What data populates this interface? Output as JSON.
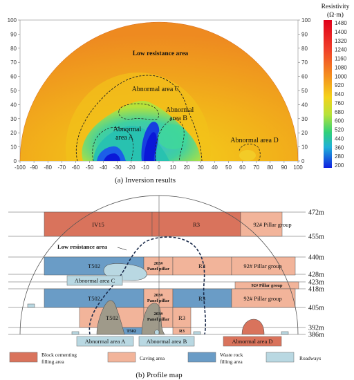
{
  "inversion": {
    "caption": "(a) Inversion results",
    "x_ticks": [
      "-100",
      "-90",
      "-80",
      "-70",
      "-60",
      "-50",
      "-40",
      "-30",
      "-20",
      "-10",
      "0",
      "10",
      "20",
      "30",
      "40",
      "50",
      "60",
      "70",
      "80",
      "90",
      "100"
    ],
    "y_ticks": [
      "0",
      "10",
      "20",
      "30",
      "40",
      "50",
      "60",
      "70",
      "80",
      "90",
      "100"
    ],
    "colorbar": {
      "title": "Resistivity",
      "unit": "(Ω·m)",
      "ticks": [
        "1480",
        "1400",
        "1320",
        "1240",
        "1160",
        "1080",
        "1000",
        "920",
        "840",
        "760",
        "680",
        "600",
        "520",
        "440",
        "360",
        "280",
        "200"
      ]
    },
    "labels": {
      "low_resistance": "Low resistance area",
      "area_c": "Abnormal area C",
      "area_b_line1": "Abnormal",
      "area_b_line2": "area B",
      "area_a_line1": "Abnormal",
      "area_a_line2": "area A",
      "area_d": "Abnormal area D"
    }
  },
  "profile": {
    "caption": "(b) Profile map",
    "levels": [
      "472m",
      "455m",
      "440m",
      "428m",
      "423m",
      "418m",
      "405m",
      "392m",
      "386m"
    ],
    "blocks": {
      "iv15": "IV15",
      "r3_top": "R3",
      "pillar_top": "92# Pillar group",
      "t502_1": "T502",
      "p203_1a": "203#",
      "p203_1b": "Panel pillar",
      "r3_1": "R3",
      "pillar_1": "92# Pillar group",
      "pillar_small": "92# Pillar group",
      "t502_2": "T502",
      "p203_2a": "203#",
      "p203_2b": "Panel pillar",
      "r3_2": "R3",
      "pillar_2": "92# Pillar group",
      "t502_3": "T502",
      "p203_3a": "203#",
      "p203_3b": "Panel pillar",
      "r3_3": "R3",
      "t502_4": "T502",
      "r3_4": "R3"
    },
    "labels": {
      "low_resistance": "Low resistance area",
      "area_c": "Abnormal area C",
      "area_a": "Abnormal area A",
      "area_b": "Abnormal area B",
      "area_d": "Abnormal area D"
    },
    "legend": {
      "block_cementing_1": "Block cementing",
      "block_cementing_2": "filling area",
      "caving": "Caving area",
      "waste_rock_1": "Waste rock",
      "waste_rock_2": "filling area",
      "roadways": "Roadways"
    },
    "colors": {
      "cementing": "#d9735c",
      "caving": "#f2b49a",
      "waste": "#6a9cc6",
      "roadway": "#b9d8e2"
    }
  }
}
